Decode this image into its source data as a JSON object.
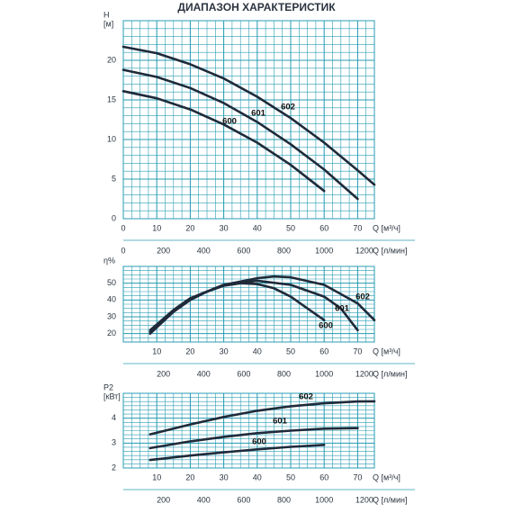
{
  "chart_data": [
    {
      "type": "line",
      "title": "ДИАПАЗОН ХАРАКТЕРИСТИК",
      "y_label": "H",
      "y_unit": "[м]",
      "x_label": "Q [м³/ч]",
      "x2_label": "Q [л/мин]",
      "xlim": [
        0,
        75
      ],
      "xticks": [
        0,
        10,
        20,
        30,
        40,
        50,
        60,
        70
      ],
      "x2lim": [
        0,
        1250
      ],
      "x2ticks": [
        0,
        200,
        400,
        600,
        800,
        1000,
        1200
      ],
      "ylim": [
        0,
        25
      ],
      "yticks": [
        0,
        5,
        10,
        15,
        20
      ],
      "grid": true,
      "grid_color": "#2a9db3",
      "series": [
        {
          "name": "600",
          "color": "#1f2a3a",
          "x": [
            0,
            10,
            20,
            30,
            40,
            50,
            60
          ],
          "values": [
            16.1,
            15.2,
            13.8,
            11.9,
            9.6,
            6.8,
            3.5
          ]
        },
        {
          "name": "601",
          "color": "#1f2a3a",
          "x": [
            0,
            10,
            20,
            30,
            40,
            50,
            60,
            70
          ],
          "values": [
            18.8,
            17.9,
            16.5,
            14.6,
            12.2,
            9.4,
            6.2,
            2.5
          ]
        },
        {
          "name": "602",
          "color": "#1f2a3a",
          "x": [
            0,
            10,
            20,
            30,
            40,
            50,
            60,
            70,
            75
          ],
          "values": [
            21.7,
            20.9,
            19.5,
            17.7,
            15.4,
            12.7,
            9.6,
            6.1,
            4.3
          ]
        }
      ]
    },
    {
      "type": "line",
      "y_label": "η%",
      "x_label": "Q [м³/ч]",
      "x2_label": "Q [л/мин]",
      "xlim": [
        0,
        75
      ],
      "xticks": [
        10,
        20,
        30,
        40,
        50,
        60,
        70
      ],
      "x2lim": [
        0,
        1250
      ],
      "x2ticks": [
        200,
        400,
        600,
        800,
        1000,
        1200
      ],
      "ylim": [
        15,
        60
      ],
      "yticks": [
        20,
        30,
        40,
        50
      ],
      "grid": true,
      "grid_color": "#2a9db3",
      "series": [
        {
          "name": "600",
          "color": "#1f2a3a",
          "x": [
            8,
            15,
            20,
            25,
            30,
            35,
            40,
            45,
            50,
            55,
            60
          ],
          "values": [
            20,
            33,
            40,
            45,
            48.5,
            50,
            49.5,
            47,
            42,
            35,
            28
          ]
        },
        {
          "name": "601",
          "color": "#1f2a3a",
          "x": [
            8,
            15,
            20,
            30,
            40,
            50,
            60,
            65,
            70
          ],
          "values": [
            21,
            34,
            41,
            49,
            51.5,
            49,
            42,
            35,
            22
          ]
        },
        {
          "name": "602",
          "color": "#1f2a3a",
          "x": [
            8,
            15,
            20,
            30,
            40,
            45,
            50,
            60,
            70,
            75
          ],
          "values": [
            22,
            34,
            41,
            49,
            53,
            54,
            53.5,
            49,
            38,
            28
          ]
        }
      ]
    },
    {
      "type": "line",
      "y_label": "P2",
      "y_unit": "[кВт]",
      "x_label": "Q [м³/ч]",
      "x2_label": "Q [л/мин]",
      "xlim": [
        0,
        75
      ],
      "xticks": [
        10,
        20,
        30,
        40,
        50,
        60,
        70
      ],
      "x2lim": [
        0,
        1250
      ],
      "x2ticks": [
        200,
        400,
        600,
        800,
        1000,
        1200
      ],
      "ylim": [
        2,
        5
      ],
      "yticks": [
        2,
        3,
        4
      ],
      "grid": true,
      "grid_color": "#2a9db3",
      "series": [
        {
          "name": "600",
          "color": "#1f2a3a",
          "x": [
            8,
            20,
            30,
            40,
            50,
            60
          ],
          "values": [
            2.32,
            2.5,
            2.63,
            2.75,
            2.85,
            2.93
          ]
        },
        {
          "name": "601",
          "color": "#1f2a3a",
          "x": [
            8,
            20,
            30,
            40,
            50,
            60,
            70
          ],
          "values": [
            2.8,
            3.07,
            3.25,
            3.4,
            3.5,
            3.58,
            3.6
          ]
        },
        {
          "name": "602",
          "color": "#1f2a3a",
          "x": [
            8,
            20,
            30,
            40,
            50,
            60,
            70,
            75
          ],
          "values": [
            3.35,
            3.75,
            4.05,
            4.3,
            4.48,
            4.6,
            4.67,
            4.68
          ]
        }
      ]
    }
  ]
}
